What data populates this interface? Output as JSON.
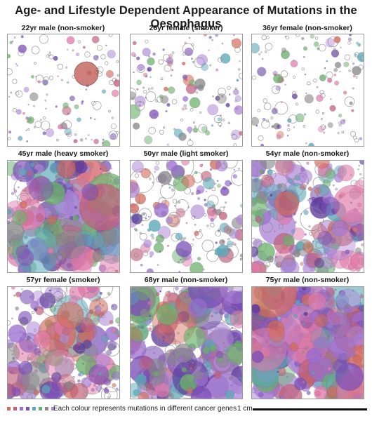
{
  "title": "Age- and Lifestyle Dependent Appearance of Mutations in the Oesophagus",
  "palette": [
    "#7b4fb8",
    "#9b6fd0",
    "#b08ad8",
    "#c0607a",
    "#5aa8b8",
    "#5c3a9a",
    "#d36a5a",
    "#888888",
    "#6ab06a",
    "#e07aa8"
  ],
  "panels": [
    {
      "label": "22yr male (non-smoker)",
      "density": 0.1
    },
    {
      "label": "26yr female (smoker)",
      "density": 0.18
    },
    {
      "label": "36yr female (non-smoker)",
      "density": 0.14
    },
    {
      "label": "45yr male (heavy smoker)",
      "density": 0.85
    },
    {
      "label": "50yr male (light smoker)",
      "density": 0.4
    },
    {
      "label": "54yr male (non-smoker)",
      "density": 0.65
    },
    {
      "label": "57yr female (smoker)",
      "density": 0.6
    },
    {
      "label": "68yr male (non-smoker)",
      "density": 0.78
    },
    {
      "label": "75yr male (non-smoker)",
      "density": 0.95
    }
  ],
  "legend": {
    "text": "Each colour represents mutations in different cancer genes",
    "swatch_colors": [
      "#d36a5a",
      "#c0607a",
      "#9b6fd0",
      "#7b4fb8",
      "#5aa8b8",
      "#6ab06a",
      "#888888",
      "#b08ad8"
    ]
  },
  "scale": {
    "label": "1 cm"
  }
}
